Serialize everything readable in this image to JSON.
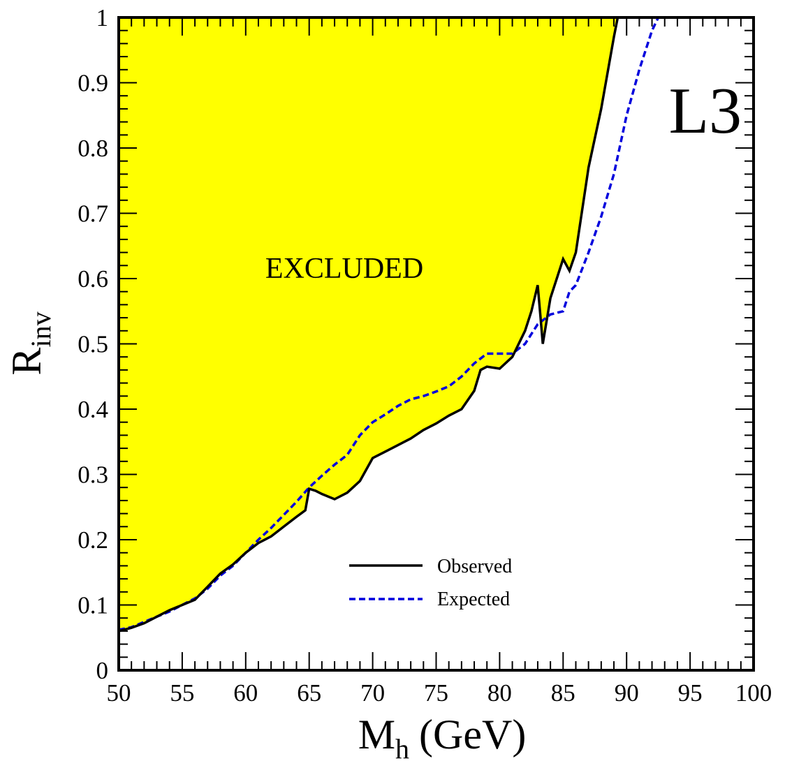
{
  "chart_data": {
    "type": "area",
    "title": "",
    "xlabel": "M",
    "xlabel_sub": "h",
    "xlabel_suffix": "(GeV)",
    "ylabel": "R",
    "ylabel_sub": "inv",
    "xlim": [
      50,
      100
    ],
    "ylim": [
      0,
      1
    ],
    "xticks": [
      50,
      55,
      60,
      65,
      70,
      75,
      80,
      85,
      90,
      95,
      100
    ],
    "xtick_labels": [
      "50",
      "55",
      "60",
      "65",
      "70",
      "75",
      "80",
      "85",
      "90",
      "95",
      "100"
    ],
    "yticks": [
      0,
      0.1,
      0.2,
      0.3,
      0.4,
      0.5,
      0.6,
      0.7,
      0.8,
      0.9,
      1
    ],
    "ytick_labels": [
      "0",
      "0.1",
      "0.2",
      "0.3",
      "0.4",
      "0.5",
      "0.6",
      "0.7",
      "0.8",
      "0.9",
      "1"
    ],
    "grid": false,
    "legend_position": "bottom-center",
    "annotations": {
      "region_label": "EXCLUDED",
      "experiment_label": "L3"
    },
    "colors": {
      "excluded_fill": "#ffff00",
      "observed": "#000000",
      "expected": "#0000dd"
    },
    "series": [
      {
        "name": "Observed",
        "style": "solid",
        "x": [
          50,
          51,
          52,
          53,
          54,
          55,
          56,
          57,
          58,
          59,
          60,
          61,
          62,
          63,
          64,
          64.7,
          65,
          65.5,
          66,
          67,
          68,
          69,
          70,
          71,
          72,
          73,
          74,
          75,
          76,
          77,
          78,
          78.5,
          79,
          80,
          81,
          82,
          82.5,
          83,
          83.2,
          83.4,
          84,
          85,
          85.5,
          86,
          86.5,
          87,
          88,
          89,
          89.3
        ],
        "y": [
          0.06,
          0.065,
          0.072,
          0.082,
          0.092,
          0.1,
          0.108,
          0.128,
          0.148,
          0.162,
          0.18,
          0.195,
          0.205,
          0.22,
          0.235,
          0.245,
          0.278,
          0.275,
          0.27,
          0.262,
          0.272,
          0.29,
          0.325,
          0.335,
          0.345,
          0.355,
          0.368,
          0.378,
          0.39,
          0.4,
          0.428,
          0.46,
          0.465,
          0.462,
          0.48,
          0.52,
          0.55,
          0.59,
          0.545,
          0.5,
          0.57,
          0.63,
          0.612,
          0.64,
          0.705,
          0.77,
          0.86,
          0.97,
          1.0
        ]
      },
      {
        "name": "Expected",
        "style": "dashed",
        "x": [
          50,
          51,
          52,
          53,
          54,
          55,
          56,
          57,
          58,
          59,
          60,
          61,
          62,
          63,
          64,
          65,
          66,
          67,
          68,
          69,
          70,
          71,
          72,
          73,
          74,
          75,
          76,
          77,
          78,
          79,
          80,
          81,
          82,
          83,
          84,
          85,
          85.5,
          86,
          87,
          88,
          89,
          90,
          91,
          92,
          92.5
        ],
        "y": [
          0.062,
          0.066,
          0.074,
          0.082,
          0.09,
          0.1,
          0.11,
          0.125,
          0.145,
          0.16,
          0.18,
          0.2,
          0.218,
          0.238,
          0.258,
          0.28,
          0.298,
          0.315,
          0.33,
          0.36,
          0.38,
          0.392,
          0.405,
          0.415,
          0.42,
          0.427,
          0.435,
          0.45,
          0.47,
          0.485,
          0.485,
          0.485,
          0.5,
          0.53,
          0.545,
          0.55,
          0.58,
          0.59,
          0.64,
          0.695,
          0.76,
          0.85,
          0.92,
          0.98,
          1.0
        ]
      }
    ]
  }
}
